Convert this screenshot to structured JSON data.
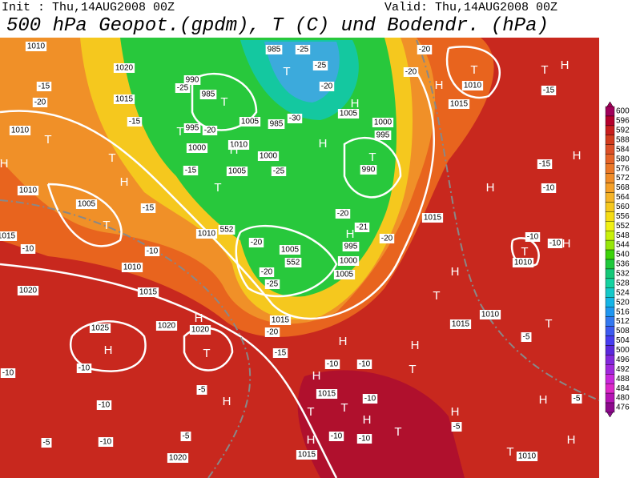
{
  "header": {
    "init": "Init : Thu,14AUG2008 00Z",
    "valid": "Valid: Thu,14AUG2008 00Z",
    "title": "500 hPa Geopot.(gpdm), T (C) und Bodendr. (hPa)"
  },
  "colorbar": {
    "ticks": [
      600,
      596,
      592,
      588,
      584,
      580,
      576,
      572,
      568,
      564,
      560,
      556,
      552,
      548,
      544,
      540,
      536,
      532,
      528,
      524,
      520,
      516,
      512,
      508,
      504,
      500,
      496,
      492,
      488,
      484,
      480,
      476
    ],
    "colors": [
      "#a0005a",
      "#b4002d",
      "#c81e1e",
      "#d23c1e",
      "#dc5028",
      "#e66428",
      "#eb7828",
      "#f08c28",
      "#f5a028",
      "#f5b428",
      "#f5c81e",
      "#f5dc14",
      "#f0f014",
      "#c8f00a",
      "#96e60a",
      "#3cd20a",
      "#1ec83c",
      "#14c878",
      "#14d2a0",
      "#14c8c8",
      "#14b4e6",
      "#1e96f0",
      "#3278f0",
      "#3c5af0",
      "#463cf0",
      "#5a28dc",
      "#8228dc",
      "#a028dc",
      "#c828dc",
      "#dc28c8",
      "#b414b4",
      "#8c0a8c"
    ]
  },
  "map": {
    "labels": [
      "1010",
      "1020",
      "1015",
      "-15",
      "-20",
      "-15",
      "1010",
      "H",
      "T",
      "T",
      "H",
      "1010",
      "1005",
      "T",
      "-15",
      "1015",
      "-10",
      "-10",
      "1010",
      "1020",
      "1015",
      "1025",
      "H",
      "-10",
      "-10",
      "1020",
      "H",
      "1020",
      "T",
      "-15",
      "H",
      "-5",
      "H",
      "-10",
      "-10",
      "-5",
      "-5",
      "1020",
      "1015",
      "1015",
      "-10",
      "-10",
      "H",
      "T",
      "T",
      "H",
      "-10",
      "H",
      "-10",
      "-10",
      "T",
      "T",
      "H",
      "H",
      "-5",
      "T",
      "1010",
      "H",
      "H",
      "-5",
      "-5",
      "T",
      "1010",
      "1015",
      "T",
      "H",
      "1010",
      "T",
      "-10",
      "-10",
      "H",
      "1015",
      "-10",
      "-15",
      "H",
      "H",
      "1010",
      "T",
      "1015",
      "H",
      "-20",
      "-20",
      "T",
      "H",
      "-15",
      "T",
      "-25",
      "-25",
      "-20",
      "985",
      "990",
      "985",
      "-25",
      "T",
      "-30",
      "985",
      "1005",
      "995",
      "-20",
      "T",
      "1010",
      "H",
      "1000",
      "1000",
      "H",
      "1005",
      "H",
      "1000",
      "995",
      "T",
      "990",
      "-15",
      "1005",
      "-25",
      "T",
      "-20",
      "-21",
      "-20",
      "552",
      "-20",
      "1010",
      "1005",
      "995",
      "552",
      "1000",
      "1005",
      "-20",
      "-25",
      "1015",
      "-20",
      "H"
    ]
  }
}
